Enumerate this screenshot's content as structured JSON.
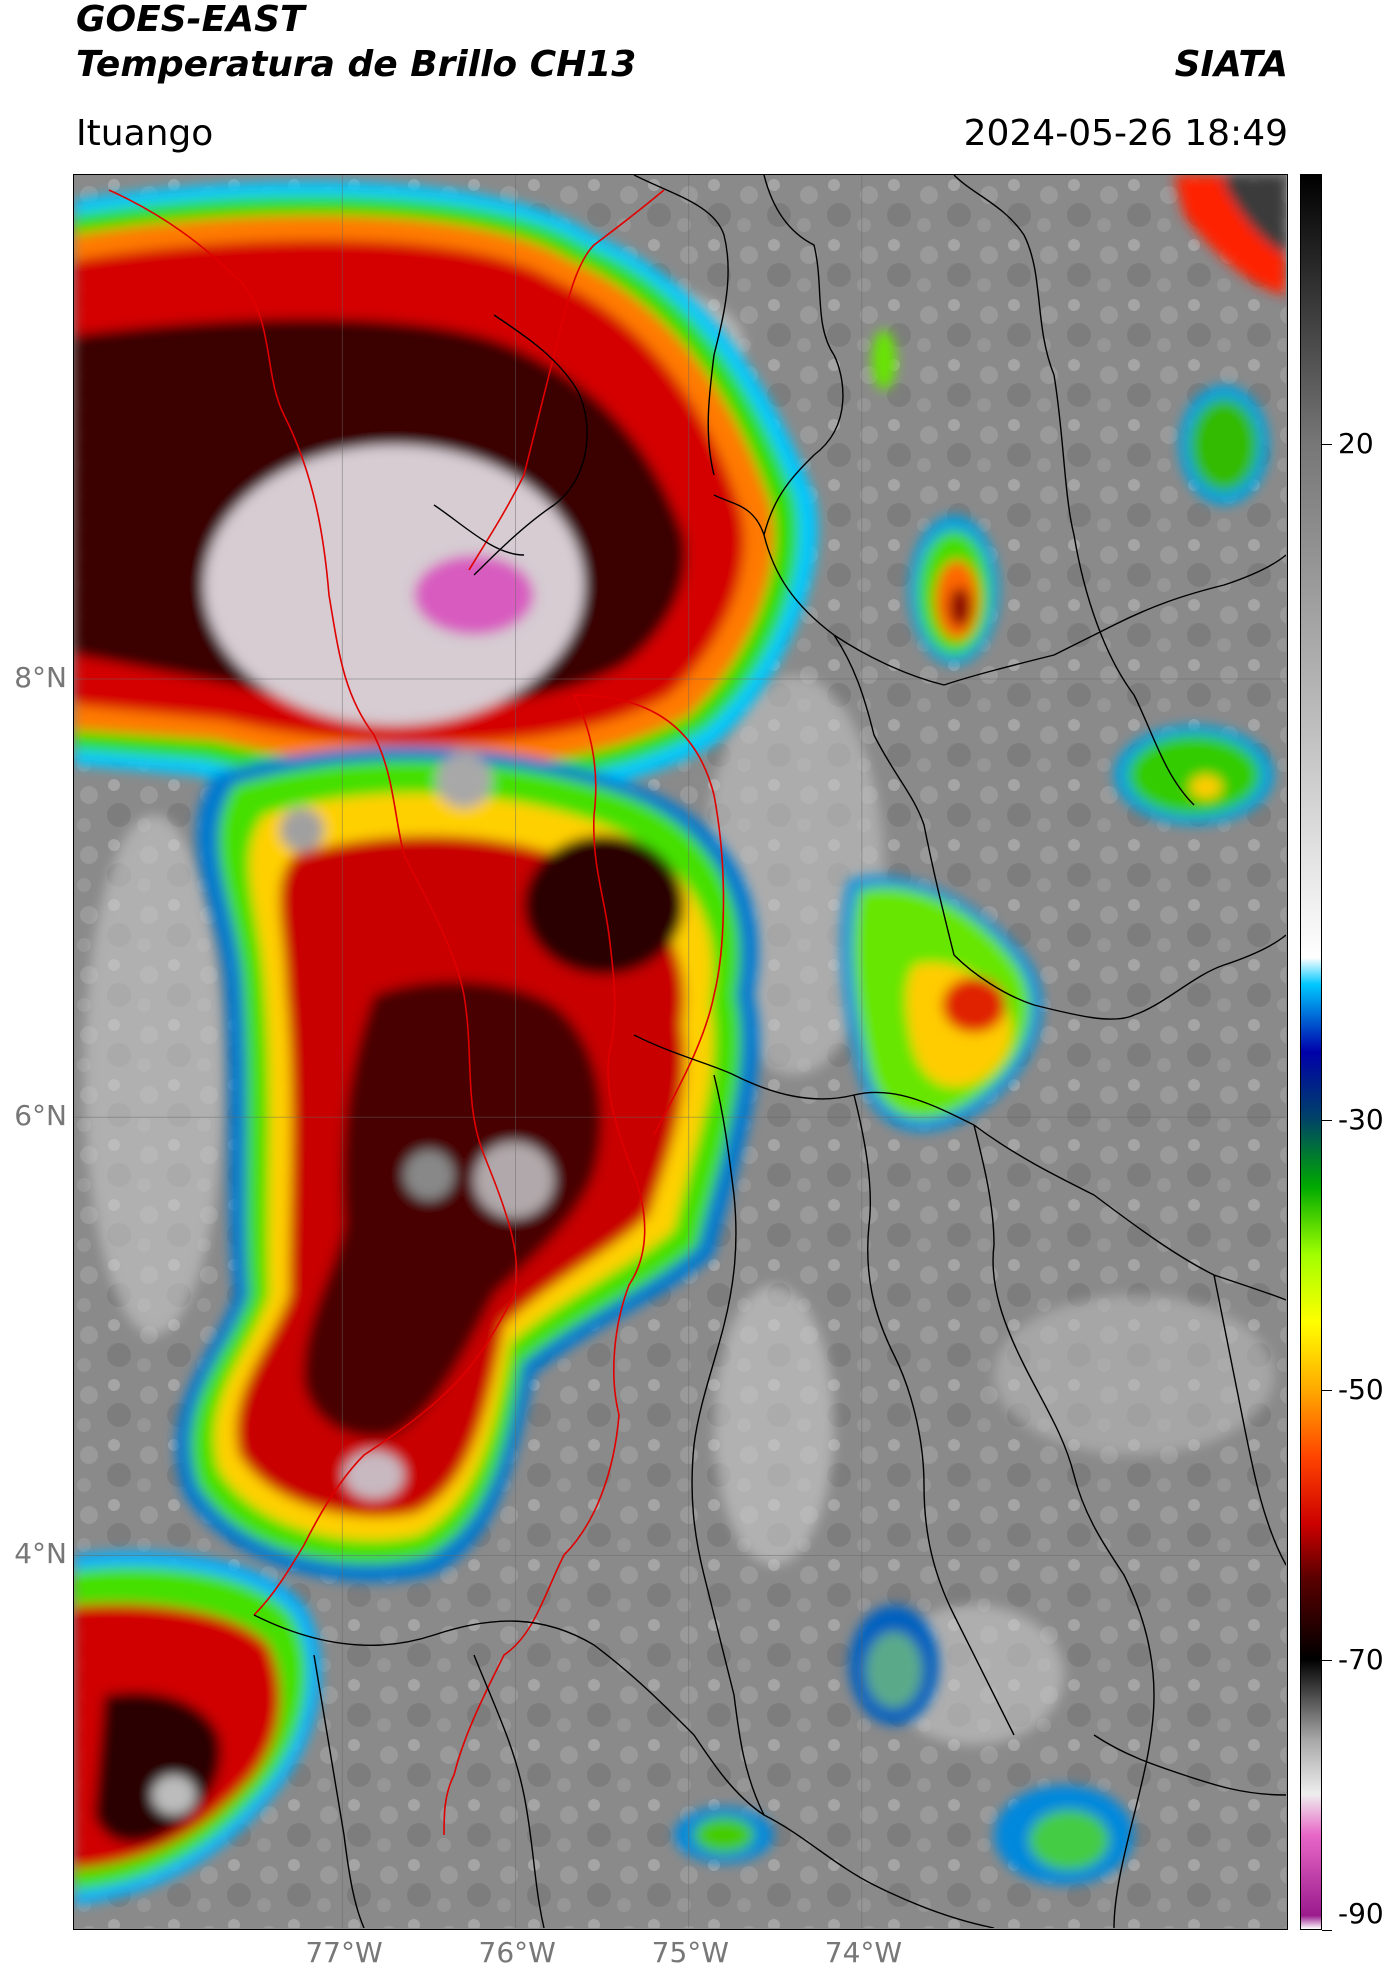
{
  "header": {
    "satellite": "GOES-EAST",
    "product": "Temperatura de Brillo CH13",
    "organization": "SIATA",
    "location": "Ituango",
    "timestamp": "2024-05-26 18:49"
  },
  "map": {
    "lat_range": [
      2.3,
      10.3
    ],
    "lon_range": [
      -78.55,
      -71.55
    ],
    "lat_ticks": [
      {
        "value": 8,
        "label": "8°N"
      },
      {
        "value": 6,
        "label": "6°N"
      },
      {
        "value": 4,
        "label": "4°N"
      }
    ],
    "lon_ticks": [
      {
        "value": -77,
        "label": "77°W"
      },
      {
        "value": -76,
        "label": "76°W"
      },
      {
        "value": -75,
        "label": "75°W"
      },
      {
        "value": -74,
        "label": "74°W"
      }
    ],
    "gridlines": true
  },
  "colorbar": {
    "range": [
      -90,
      40
    ],
    "ticks": [
      {
        "value": 20,
        "label": "20"
      },
      {
        "value": -30,
        "label": "-30"
      },
      {
        "value": -50,
        "label": "-50"
      },
      {
        "value": -70,
        "label": "-70"
      },
      {
        "value": -90,
        "label": "-90"
      }
    ],
    "stops": [
      {
        "value": -90,
        "color": "#ffffff"
      },
      {
        "value": -89,
        "color": "#9a1a8c"
      },
      {
        "value": -83,
        "color": "#e868c8"
      },
      {
        "value": -80,
        "color": "#eeeeee"
      },
      {
        "value": -76,
        "color": "#a8a8a8"
      },
      {
        "value": -70,
        "color": "#000000"
      },
      {
        "value": -64,
        "color": "#5a0000"
      },
      {
        "value": -60,
        "color": "#cc0000"
      },
      {
        "value": -55,
        "color": "#ff4400"
      },
      {
        "value": -50,
        "color": "#ffaa00"
      },
      {
        "value": -45,
        "color": "#ffff00"
      },
      {
        "value": -40,
        "color": "#a0ff00"
      },
      {
        "value": -35,
        "color": "#00aa00"
      },
      {
        "value": -30,
        "color": "#004466"
      },
      {
        "value": -25,
        "color": "#0000aa"
      },
      {
        "value": -20,
        "color": "#00c8ff"
      },
      {
        "value": -18,
        "color": "#ffffff"
      },
      {
        "value": 0,
        "color": "#bbbbbb"
      },
      {
        "value": 20,
        "color": "#777777"
      },
      {
        "value": 40,
        "color": "#000000"
      }
    ]
  }
}
